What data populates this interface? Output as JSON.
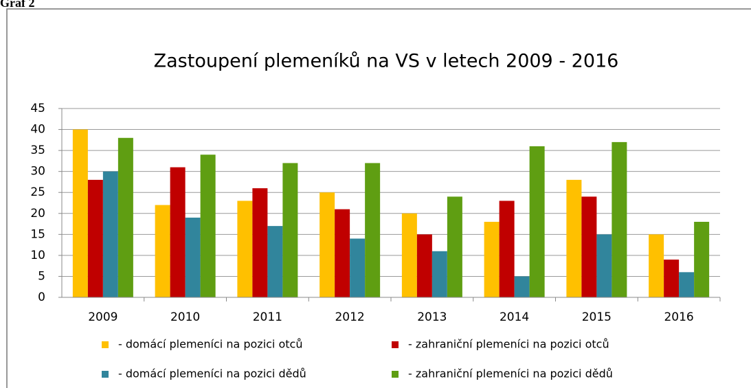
{
  "heading": "Graf 2",
  "chart_data": {
    "type": "bar",
    "title": "Zastoupení plemeníků na VS v letech 2009 - 2016",
    "categories": [
      "2009",
      "2010",
      "2011",
      "2012",
      "2013",
      "2014",
      "2015",
      "2016"
    ],
    "series": [
      {
        "name": "- domácí plemeníci na pozici otců",
        "color": "#ffc000",
        "values": [
          40,
          22,
          23,
          25,
          20,
          18,
          28,
          15
        ]
      },
      {
        "name": "- zahraniční plemeníci na pozici otců",
        "color": "#c00000",
        "values": [
          28,
          31,
          26,
          21,
          15,
          23,
          24,
          9
        ]
      },
      {
        "name": "- domácí plemeníci na pozici dědů",
        "color": "#31859c",
        "values": [
          30,
          19,
          17,
          14,
          11,
          5,
          15,
          6
        ]
      },
      {
        "name": "- zahraniční plemeníci na pozici dědů",
        "color": "#5f9e12",
        "values": [
          38,
          34,
          32,
          32,
          24,
          36,
          37,
          18
        ]
      }
    ],
    "ylim": [
      0,
      45
    ],
    "yticks": [
      0,
      5,
      10,
      15,
      20,
      25,
      30,
      35,
      40,
      45
    ],
    "grid": true
  }
}
